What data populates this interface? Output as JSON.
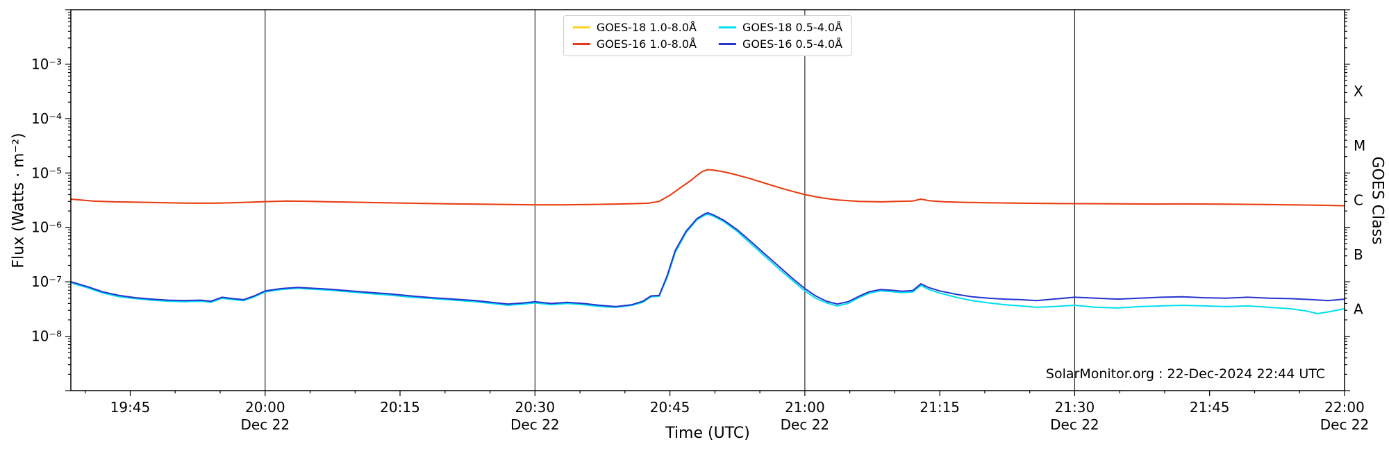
{
  "watermark": "SolarMonitor.org : 22-Dec-2024 22:44 UTC",
  "legend": {
    "entries": [
      {
        "label": "GOES-18 1.0-8.0Å",
        "color": "#ffd21f",
        "series_id": "goes18_long"
      },
      {
        "label": "GOES-18 0.5-4.0Å",
        "color": "#00dfee",
        "series_id": "goes18_short"
      },
      {
        "label": "GOES-16 1.0-8.0Å",
        "color": "#e8391a",
        "series_id": "goes16_long"
      },
      {
        "label": "GOES-16 0.5-4.0Å",
        "color": "#2433cf",
        "series_id": "goes16_short"
      }
    ]
  },
  "chart_data": {
    "type": "line",
    "title": "",
    "x_axis": {
      "label": "Time (UTC)",
      "range_hours_utc": [
        19.64,
        22.0
      ],
      "minor_tick_interval_minutes": 5,
      "gridlines_hours": [
        20.0,
        20.5,
        21.0,
        21.5
      ],
      "major_ticks": [
        {
          "t": 19.75,
          "label": "19:45"
        },
        {
          "t": 20.0,
          "label": "20:00",
          "sub": "Dec 22"
        },
        {
          "t": 20.25,
          "label": "20:15"
        },
        {
          "t": 20.5,
          "label": "20:30",
          "sub": "Dec 22"
        },
        {
          "t": 20.75,
          "label": "20:45"
        },
        {
          "t": 21.0,
          "label": "21:00",
          "sub": "Dec 22"
        },
        {
          "t": 21.25,
          "label": "21:15"
        },
        {
          "t": 21.5,
          "label": "21:30",
          "sub": "Dec 22"
        },
        {
          "t": 21.75,
          "label": "21:45"
        },
        {
          "t": 22.0,
          "label": "22:00",
          "sub": "Dec 22"
        }
      ]
    },
    "y_axis": {
      "label": "Flux (Watts · m⁻²)",
      "scale": "log",
      "range_exp": [
        -9,
        -2
      ],
      "tick_labels": [
        {
          "exp": -3,
          "label": "10⁻³"
        },
        {
          "exp": -4,
          "label": "10⁻⁴"
        },
        {
          "exp": -5,
          "label": "10⁻⁵"
        },
        {
          "exp": -6,
          "label": "10⁻⁶"
        },
        {
          "exp": -7,
          "label": "10⁻⁷"
        },
        {
          "exp": -8,
          "label": "10⁻⁸"
        }
      ]
    },
    "goes_class_axis": {
      "label": "GOES Class",
      "classes": [
        {
          "letter": "X",
          "exp": -3.5
        },
        {
          "letter": "M",
          "exp": -4.5
        },
        {
          "letter": "C",
          "exp": -5.5
        },
        {
          "letter": "B",
          "exp": -6.5
        },
        {
          "letter": "A",
          "exp": -7.5
        }
      ]
    },
    "annotation": "SolarMonitor.org : 22-Dec-2024 22:44 UTC",
    "series": [
      {
        "id": "goes18_long",
        "label": "GOES-18 1.0-8.0Å",
        "color": "#ffd21f",
        "points_ref": "goes16_long"
      },
      {
        "id": "goes16_long",
        "label": "GOES-16 1.0-8.0Å",
        "color": "#e8391a",
        "points": [
          [
            19.64,
            3.3e-06
          ],
          [
            19.68,
            3.05e-06
          ],
          [
            19.72,
            2.95e-06
          ],
          [
            19.76,
            2.9e-06
          ],
          [
            19.8,
            2.85e-06
          ],
          [
            19.84,
            2.8e-06
          ],
          [
            19.88,
            2.78e-06
          ],
          [
            19.92,
            2.8e-06
          ],
          [
            19.96,
            2.88e-06
          ],
          [
            20.0,
            2.97e-06
          ],
          [
            20.04,
            3.05e-06
          ],
          [
            20.08,
            3.02e-06
          ],
          [
            20.12,
            2.95e-06
          ],
          [
            20.16,
            2.9e-06
          ],
          [
            20.2,
            2.85e-06
          ],
          [
            20.25,
            2.8e-06
          ],
          [
            20.3,
            2.75e-06
          ],
          [
            20.35,
            2.7e-06
          ],
          [
            20.4,
            2.67e-06
          ],
          [
            20.45,
            2.63e-06
          ],
          [
            20.5,
            2.6e-06
          ],
          [
            20.55,
            2.6e-06
          ],
          [
            20.6,
            2.63e-06
          ],
          [
            20.65,
            2.68e-06
          ],
          [
            20.68,
            2.72e-06
          ],
          [
            20.71,
            2.78e-06
          ],
          [
            20.73,
            3e-06
          ],
          [
            20.75,
            3.9e-06
          ],
          [
            20.77,
            5.4e-06
          ],
          [
            20.79,
            7.4e-06
          ],
          [
            20.8,
            9e-06
          ],
          [
            20.81,
            1.06e-05
          ],
          [
            20.82,
            1.15e-05
          ],
          [
            20.83,
            1.13e-05
          ],
          [
            20.85,
            1.05e-05
          ],
          [
            20.87,
            9.4e-06
          ],
          [
            20.9,
            7.8e-06
          ],
          [
            20.93,
            6.3e-06
          ],
          [
            20.96,
            5.1e-06
          ],
          [
            21.0,
            4e-06
          ],
          [
            21.03,
            3.5e-06
          ],
          [
            21.06,
            3.2e-06
          ],
          [
            21.1,
            3e-06
          ],
          [
            21.14,
            2.95e-06
          ],
          [
            21.17,
            3e-06
          ],
          [
            21.2,
            3.05e-06
          ],
          [
            21.215,
            3.3e-06
          ],
          [
            21.23,
            3.1e-06
          ],
          [
            21.26,
            2.95e-06
          ],
          [
            21.3,
            2.88e-06
          ],
          [
            21.34,
            2.83e-06
          ],
          [
            21.38,
            2.8e-06
          ],
          [
            21.42,
            2.77e-06
          ],
          [
            21.46,
            2.75e-06
          ],
          [
            21.5,
            2.73e-06
          ],
          [
            21.55,
            2.72e-06
          ],
          [
            21.6,
            2.7e-06
          ],
          [
            21.65,
            2.68e-06
          ],
          [
            21.7,
            2.7e-06
          ],
          [
            21.75,
            2.68e-06
          ],
          [
            21.8,
            2.66e-06
          ],
          [
            21.85,
            2.63e-06
          ],
          [
            21.9,
            2.6e-06
          ],
          [
            21.95,
            2.56e-06
          ],
          [
            22.0,
            2.5e-06
          ]
        ]
      },
      {
        "id": "goes18_short",
        "label": "GOES-18 0.5-4.0Å",
        "color": "#00dfee",
        "points": [
          [
            19.64,
            9.6e-08
          ],
          [
            19.67,
            7.8e-08
          ],
          [
            19.7,
            6.2e-08
          ],
          [
            19.73,
            5.3e-08
          ],
          [
            19.76,
            4.9e-08
          ],
          [
            19.79,
            4.6e-08
          ],
          [
            19.82,
            4.4e-08
          ],
          [
            19.85,
            4.3e-08
          ],
          [
            19.88,
            4.4e-08
          ],
          [
            19.9,
            4.2e-08
          ],
          [
            19.92,
            5e-08
          ],
          [
            19.94,
            4.7e-08
          ],
          [
            19.96,
            4.5e-08
          ],
          [
            19.98,
            5.3e-08
          ],
          [
            20.0,
            6.5e-08
          ],
          [
            20.03,
            7.2e-08
          ],
          [
            20.06,
            7.6e-08
          ],
          [
            20.09,
            7.3e-08
          ],
          [
            20.12,
            7e-08
          ],
          [
            20.15,
            6.6e-08
          ],
          [
            20.19,
            6.1e-08
          ],
          [
            20.23,
            5.7e-08
          ],
          [
            20.27,
            5.2e-08
          ],
          [
            20.31,
            4.9e-08
          ],
          [
            20.35,
            4.6e-08
          ],
          [
            20.39,
            4.3e-08
          ],
          [
            20.42,
            4e-08
          ],
          [
            20.45,
            3.7e-08
          ],
          [
            20.48,
            3.9e-08
          ],
          [
            20.5,
            4.1e-08
          ],
          [
            20.53,
            3.8e-08
          ],
          [
            20.56,
            4e-08
          ],
          [
            20.59,
            3.8e-08
          ],
          [
            20.62,
            3.5e-08
          ],
          [
            20.65,
            3.4e-08
          ],
          [
            20.68,
            3.7e-08
          ],
          [
            20.7,
            4.2e-08
          ],
          [
            20.715,
            5.3e-08
          ],
          [
            20.73,
            5.4e-08
          ],
          [
            20.745,
            1.2e-07
          ],
          [
            20.76,
            3.5e-07
          ],
          [
            20.78,
            8e-07
          ],
          [
            20.8,
            1.38e-06
          ],
          [
            20.815,
            1.68e-06
          ],
          [
            20.82,
            1.75e-06
          ],
          [
            20.83,
            1.62e-06
          ],
          [
            20.85,
            1.28e-06
          ],
          [
            20.875,
            8.4e-07
          ],
          [
            20.9,
            5e-07
          ],
          [
            20.925,
            3e-07
          ],
          [
            20.95,
            1.8e-07
          ],
          [
            20.975,
            1.1e-07
          ],
          [
            21.0,
            6.8e-08
          ],
          [
            21.02,
            5e-08
          ],
          [
            21.04,
            4.1e-08
          ],
          [
            21.06,
            3.6e-08
          ],
          [
            21.08,
            4e-08
          ],
          [
            21.1,
            5.1e-08
          ],
          [
            21.12,
            6.2e-08
          ],
          [
            21.14,
            6.8e-08
          ],
          [
            21.16,
            6.6e-08
          ],
          [
            21.18,
            6.3e-08
          ],
          [
            21.2,
            6.5e-08
          ],
          [
            21.215,
            8.6e-08
          ],
          [
            21.23,
            7.2e-08
          ],
          [
            21.25,
            6.2e-08
          ],
          [
            21.28,
            5.2e-08
          ],
          [
            21.31,
            4.5e-08
          ],
          [
            21.34,
            4.1e-08
          ],
          [
            21.37,
            3.8e-08
          ],
          [
            21.4,
            3.6e-08
          ],
          [
            21.43,
            3.4e-08
          ],
          [
            21.46,
            3.5e-08
          ],
          [
            21.5,
            3.7e-08
          ],
          [
            21.54,
            3.4e-08
          ],
          [
            21.58,
            3.3e-08
          ],
          [
            21.62,
            3.5e-08
          ],
          [
            21.66,
            3.6e-08
          ],
          [
            21.7,
            3.7e-08
          ],
          [
            21.74,
            3.6e-08
          ],
          [
            21.78,
            3.5e-08
          ],
          [
            21.82,
            3.6e-08
          ],
          [
            21.86,
            3.4e-08
          ],
          [
            21.9,
            3.2e-08
          ],
          [
            21.93,
            2.9e-08
          ],
          [
            21.95,
            2.6e-08
          ],
          [
            21.97,
            2.8e-08
          ],
          [
            22.0,
            3.2e-08
          ]
        ]
      },
      {
        "id": "goes16_short",
        "label": "GOES-16 0.5-4.0Å",
        "color": "#2433cf",
        "points": [
          [
            19.64,
            1e-07
          ],
          [
            19.67,
            8.2e-08
          ],
          [
            19.7,
            6.5e-08
          ],
          [
            19.73,
            5.6e-08
          ],
          [
            19.76,
            5.1e-08
          ],
          [
            19.79,
            4.8e-08
          ],
          [
            19.82,
            4.6e-08
          ],
          [
            19.85,
            4.5e-08
          ],
          [
            19.88,
            4.6e-08
          ],
          [
            19.9,
            4.4e-08
          ],
          [
            19.92,
            5.2e-08
          ],
          [
            19.94,
            4.9e-08
          ],
          [
            19.96,
            4.7e-08
          ],
          [
            19.98,
            5.5e-08
          ],
          [
            20.0,
            6.8e-08
          ],
          [
            20.03,
            7.5e-08
          ],
          [
            20.06,
            7.9e-08
          ],
          [
            20.09,
            7.6e-08
          ],
          [
            20.12,
            7.3e-08
          ],
          [
            20.15,
            6.9e-08
          ],
          [
            20.19,
            6.4e-08
          ],
          [
            20.23,
            6e-08
          ],
          [
            20.27,
            5.5e-08
          ],
          [
            20.31,
            5.1e-08
          ],
          [
            20.35,
            4.8e-08
          ],
          [
            20.39,
            4.5e-08
          ],
          [
            20.42,
            4.2e-08
          ],
          [
            20.45,
            3.9e-08
          ],
          [
            20.48,
            4.1e-08
          ],
          [
            20.5,
            4.3e-08
          ],
          [
            20.53,
            4e-08
          ],
          [
            20.56,
            4.2e-08
          ],
          [
            20.59,
            4e-08
          ],
          [
            20.62,
            3.7e-08
          ],
          [
            20.65,
            3.5e-08
          ],
          [
            20.68,
            3.8e-08
          ],
          [
            20.7,
            4.4e-08
          ],
          [
            20.715,
            5.5e-08
          ],
          [
            20.73,
            5.6e-08
          ],
          [
            20.745,
            1.3e-07
          ],
          [
            20.76,
            3.8e-07
          ],
          [
            20.78,
            8.5e-07
          ],
          [
            20.8,
            1.45e-06
          ],
          [
            20.815,
            1.78e-06
          ],
          [
            20.82,
            1.85e-06
          ],
          [
            20.83,
            1.7e-06
          ],
          [
            20.85,
            1.35e-06
          ],
          [
            20.875,
            9e-07
          ],
          [
            20.9,
            5.5e-07
          ],
          [
            20.925,
            3.3e-07
          ],
          [
            20.95,
            2e-07
          ],
          [
            20.975,
            1.2e-07
          ],
          [
            21.0,
            7.5e-08
          ],
          [
            21.02,
            5.5e-08
          ],
          [
            21.04,
            4.4e-08
          ],
          [
            21.06,
            3.9e-08
          ],
          [
            21.08,
            4.3e-08
          ],
          [
            21.1,
            5.4e-08
          ],
          [
            21.12,
            6.6e-08
          ],
          [
            21.14,
            7.2e-08
          ],
          [
            21.16,
            7e-08
          ],
          [
            21.18,
            6.7e-08
          ],
          [
            21.2,
            6.9e-08
          ],
          [
            21.215,
            9.2e-08
          ],
          [
            21.23,
            7.8e-08
          ],
          [
            21.25,
            6.8e-08
          ],
          [
            21.28,
            5.9e-08
          ],
          [
            21.31,
            5.3e-08
          ],
          [
            21.34,
            5e-08
          ],
          [
            21.37,
            4.8e-08
          ],
          [
            21.4,
            4.7e-08
          ],
          [
            21.43,
            4.5e-08
          ],
          [
            21.46,
            4.8e-08
          ],
          [
            21.5,
            5.2e-08
          ],
          [
            21.54,
            5e-08
          ],
          [
            21.58,
            4.8e-08
          ],
          [
            21.62,
            5e-08
          ],
          [
            21.66,
            5.2e-08
          ],
          [
            21.7,
            5.3e-08
          ],
          [
            21.74,
            5.1e-08
          ],
          [
            21.78,
            5e-08
          ],
          [
            21.82,
            5.2e-08
          ],
          [
            21.86,
            5e-08
          ],
          [
            21.9,
            4.9e-08
          ],
          [
            21.94,
            4.7e-08
          ],
          [
            21.97,
            4.5e-08
          ],
          [
            22.0,
            4.8e-08
          ]
        ]
      }
    ]
  }
}
